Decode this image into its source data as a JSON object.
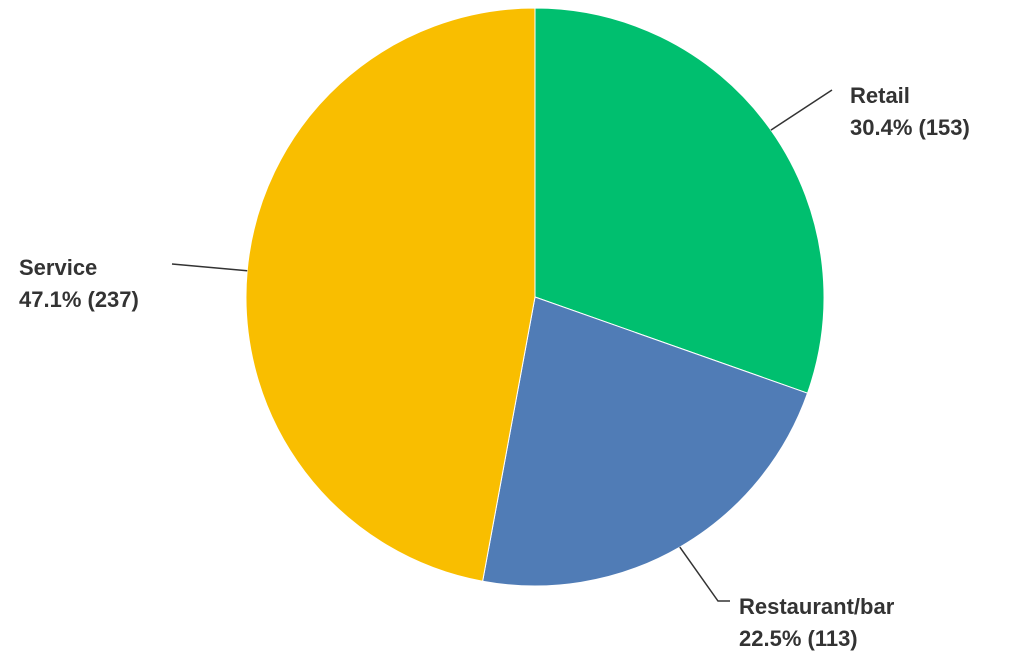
{
  "chart_data": {
    "type": "pie",
    "title": "",
    "start_angle_deg": 0,
    "direction": "clockwise",
    "slices": [
      {
        "name": "Retail",
        "percent": 30.4,
        "count": 153,
        "pct_label": "30.4% (153)",
        "color": "#00bf6f"
      },
      {
        "name": "Restaurant/bar",
        "percent": 22.5,
        "count": 113,
        "pct_label": "22.5% (113)",
        "color": "#507cb6"
      },
      {
        "name": "Service",
        "percent": 47.1,
        "count": 237,
        "pct_label": "47.1% (237)",
        "color": "#f9be00"
      }
    ]
  }
}
